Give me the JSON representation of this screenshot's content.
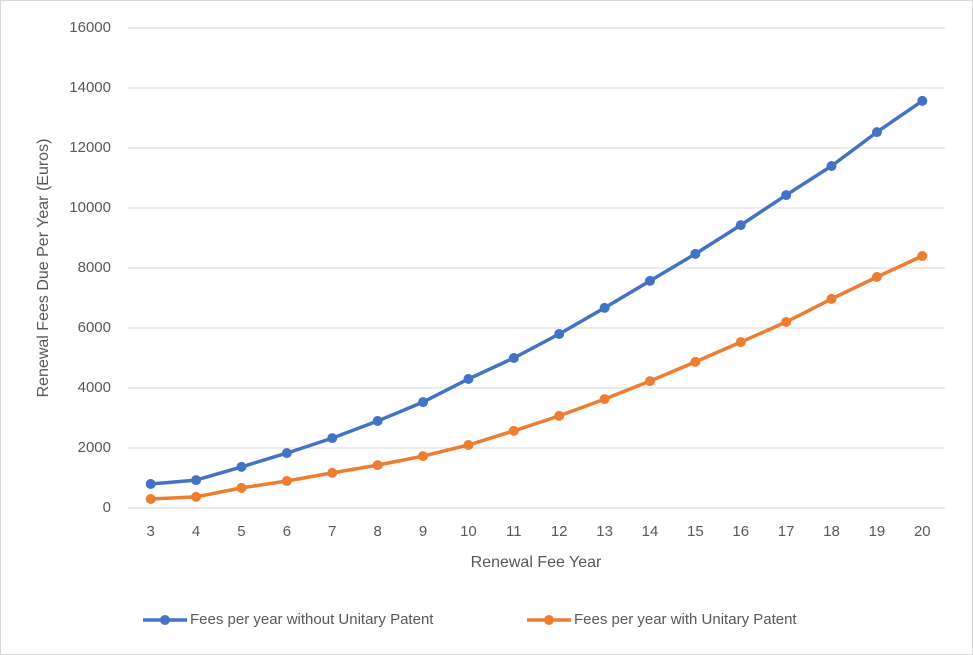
{
  "chart_data": {
    "type": "line",
    "x_label": "Renewal Fee Year",
    "y_label": "Renewal Fees Due Per Year (Euros)",
    "categories": [
      3,
      4,
      5,
      6,
      7,
      8,
      9,
      10,
      11,
      12,
      13,
      14,
      15,
      16,
      17,
      18,
      19,
      20
    ],
    "series": [
      {
        "name": "Fees per year without Unitary Patent",
        "color": "#4472c4",
        "values": [
          800,
          930,
          1370,
          1830,
          2330,
          2900,
          3530,
          4300,
          5000,
          5800,
          6670,
          7570,
          8470,
          9430,
          10430,
          11400,
          12530,
          13570
        ]
      },
      {
        "name": "Fees per year with Unitary Patent",
        "color": "#ed7d31",
        "values": [
          300,
          370,
          670,
          900,
          1170,
          1430,
          1730,
          2100,
          2570,
          3070,
          3630,
          4230,
          4870,
          5530,
          6200,
          6970,
          7700,
          8400
        ]
      }
    ],
    "ylim": [
      0,
      16000
    ],
    "yticks": [
      0,
      2000,
      4000,
      6000,
      8000,
      10000,
      12000,
      14000,
      16000
    ],
    "grid": true,
    "legend": "bottom"
  }
}
